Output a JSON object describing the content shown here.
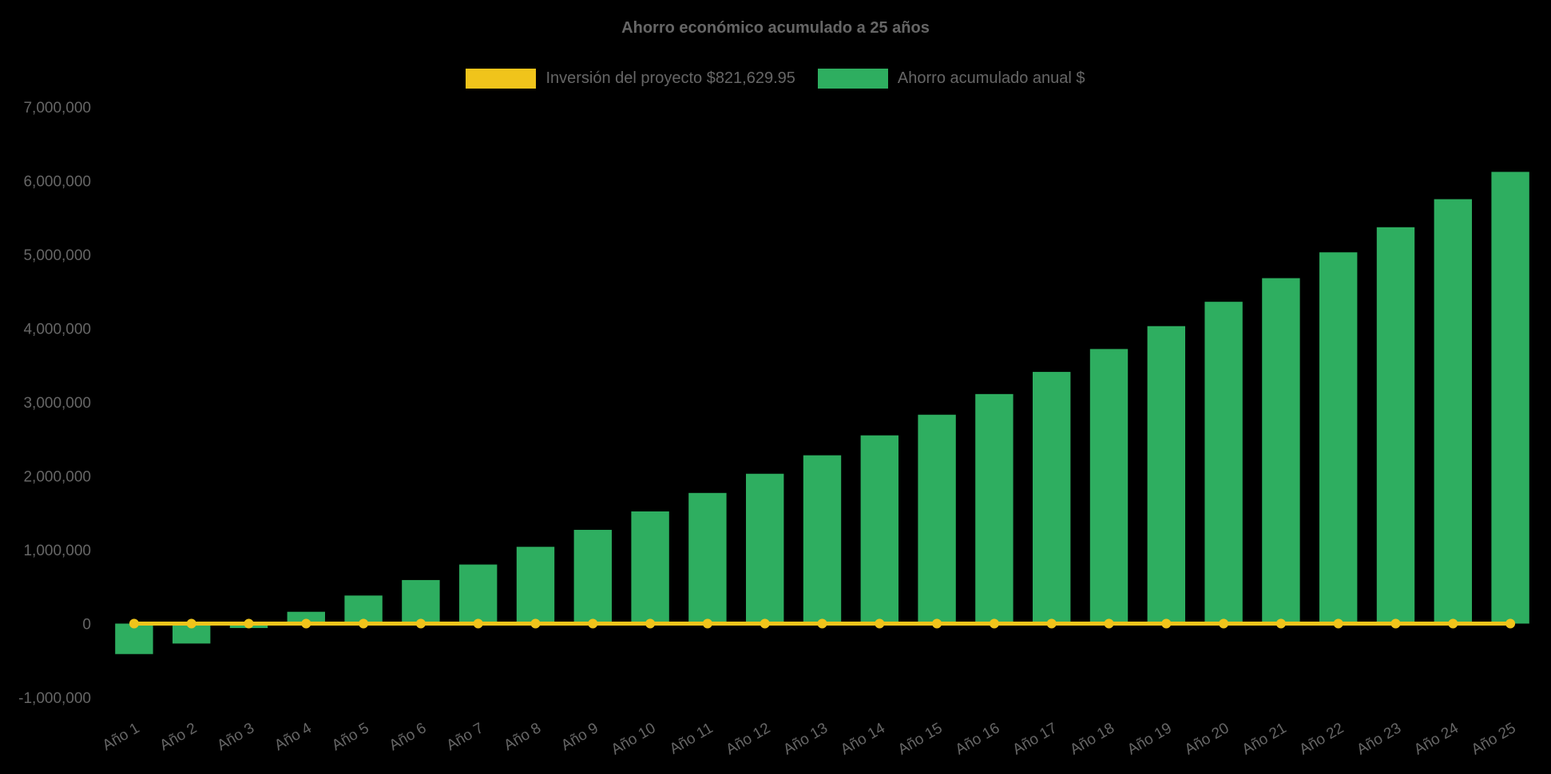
{
  "background_color": "#000000",
  "text_color": "#666666",
  "chart_data": {
    "type": "bar",
    "title": "Ahorro económico acumulado a 25 años",
    "legend_position": "top",
    "grid": false,
    "ylim": [
      -1000000,
      7000000
    ],
    "yticks": [
      -1000000,
      0,
      1000000,
      2000000,
      3000000,
      4000000,
      5000000,
      6000000,
      7000000
    ],
    "categories": [
      "Año 1",
      "Año 2",
      "Año 3",
      "Año 4",
      "Año 5",
      "Año 6",
      "Año 7",
      "Año 8",
      "Año 9",
      "Año 10",
      "Año 11",
      "Año 12",
      "Año 13",
      "Año 14",
      "Año 15",
      "Año 16",
      "Año 17",
      "Año 18",
      "Año 19",
      "Año 20",
      "Año 21",
      "Año 22",
      "Año 23",
      "Año 24",
      "Año 25"
    ],
    "series": [
      {
        "name": "Inversión del proyecto $821,629.95",
        "type": "line",
        "color": "#F0C41B",
        "values": [
          0,
          0,
          0,
          0,
          0,
          0,
          0,
          0,
          0,
          0,
          0,
          0,
          0,
          0,
          0,
          0,
          0,
          0,
          0,
          0,
          0,
          0,
          0,
          0,
          0
        ]
      },
      {
        "name": "Ahorro acumulado anual $",
        "type": "bar",
        "color": "#2EAE60",
        "values": [
          -413000,
          -270000,
          -60000,
          160000,
          380000,
          590000,
          800000,
          1040000,
          1270000,
          1520000,
          1770000,
          2030000,
          2280000,
          2550000,
          2830000,
          3110000,
          3410000,
          3720000,
          4030000,
          4360000,
          4680000,
          5030000,
          5370000,
          5750000,
          6120000
        ]
      }
    ]
  }
}
